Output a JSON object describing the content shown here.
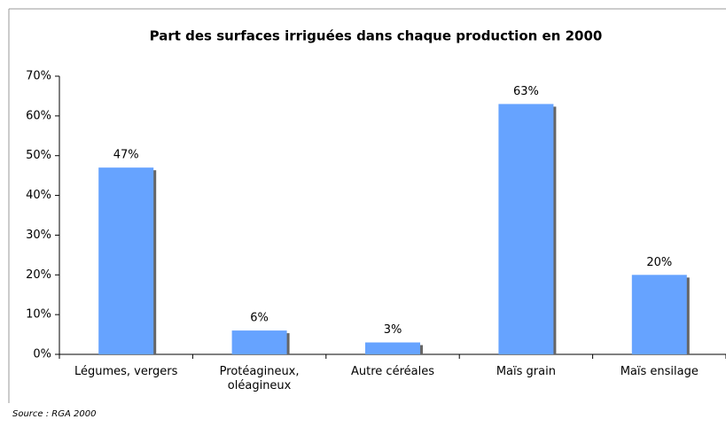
{
  "chart_data": {
    "type": "bar",
    "title": "Part des surfaces irriguées dans chaque production en 2000",
    "categories": [
      "Légumes, vergers",
      "Protéagineux, oléagineux",
      "Autre céréales",
      "Maïs grain",
      "Maïs ensilage"
    ],
    "values": [
      47,
      6,
      3,
      63,
      20
    ],
    "value_labels": [
      "47%",
      "6%",
      "3%",
      "63%",
      "20%"
    ],
    "color": "#66a3ff",
    "ylim": [
      0,
      70
    ],
    "yticks": [
      {
        "value": 0,
        "label": "0%"
      },
      {
        "value": 10,
        "label": "10%"
      },
      {
        "value": 20,
        "label": "20%"
      },
      {
        "value": 30,
        "label": "30%"
      },
      {
        "value": 40,
        "label": "40%"
      },
      {
        "value": 50,
        "label": "50%"
      },
      {
        "value": 60,
        "label": "60%"
      },
      {
        "value": 70,
        "label": "70%"
      }
    ],
    "source": "Source : RGA 2000"
  }
}
